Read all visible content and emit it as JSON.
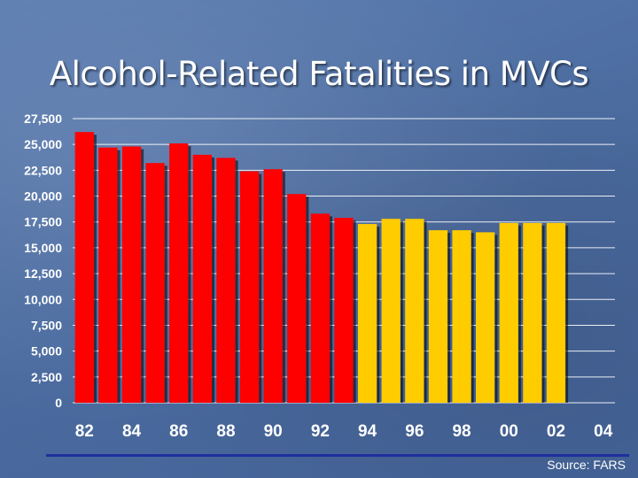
{
  "slide": {
    "title": "Alcohol-Related Fatalities in MVCs",
    "source": "Source: FARS"
  },
  "colors": {
    "background": "#4d6fa3",
    "bar_early": "#ff0000",
    "bar_late": "#ffcc00",
    "grid": "#ffffff",
    "rule": "#1f2f9e"
  },
  "chart_data": {
    "type": "bar",
    "title": "",
    "xlabel": "",
    "ylabel": "",
    "categories": [
      "82",
      "83",
      "84",
      "85",
      "86",
      "87",
      "88",
      "89",
      "90",
      "91",
      "92",
      "93",
      "94",
      "95",
      "96",
      "97",
      "98",
      "99",
      "00",
      "01",
      "02",
      "03",
      "04"
    ],
    "values": [
      26200,
      24700,
      24800,
      23200,
      25100,
      24000,
      23700,
      22400,
      22600,
      20200,
      18300,
      17900,
      17300,
      17800,
      17800,
      16700,
      16700,
      16500,
      17400,
      17400,
      17400,
      null,
      null
    ],
    "bar_colors": [
      "red",
      "red",
      "red",
      "red",
      "red",
      "red",
      "red",
      "red",
      "red",
      "red",
      "red",
      "red",
      "yellow",
      "yellow",
      "yellow",
      "yellow",
      "yellow",
      "yellow",
      "yellow",
      "yellow",
      "yellow",
      "yellow",
      "yellow"
    ],
    "x_tick_labels": [
      "82",
      "84",
      "86",
      "88",
      "90",
      "92",
      "94",
      "96",
      "98",
      "00",
      "02",
      "04"
    ],
    "y_tick_labels": [
      "0",
      "2,500",
      "5,000",
      "7,500",
      "10,000",
      "12,500",
      "15,000",
      "17,500",
      "20,000",
      "22,500",
      "25,000",
      "27,500"
    ],
    "ylim": [
      0,
      27500
    ],
    "grid": true,
    "legend": "none"
  }
}
